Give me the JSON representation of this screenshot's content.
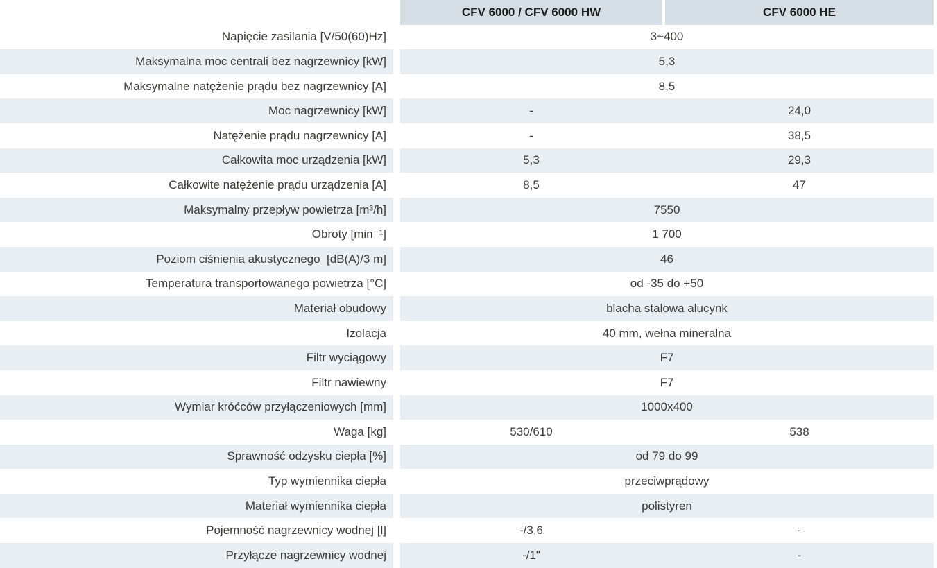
{
  "table": {
    "header": {
      "corner": "",
      "col1": "CFV 6000 / CFV 6000 HW",
      "col2": "CFV 6000 HE"
    },
    "rows": [
      {
        "label": "Napięcie zasilania [V/50(60)Hz]",
        "span": "3~400"
      },
      {
        "label": "Maksymalna moc centrali bez nagrzewnicy [kW]",
        "span": "5,3"
      },
      {
        "label": "Maksymalne natężenie prądu bez nagrzewnicy [A]",
        "span": "8,5"
      },
      {
        "label": "Moc nagrzewnicy [kW]",
        "col1": "-",
        "col2": "24,0"
      },
      {
        "label": "Natężenie prądu nagrzewnicy [A]",
        "col1": "-",
        "col2": "38,5"
      },
      {
        "label": "Całkowita moc urządzenia [kW]",
        "col1": "5,3",
        "col2": "29,3"
      },
      {
        "label": "Całkowite natężenie prądu urządzenia [A]",
        "col1": "8,5",
        "col2": "47"
      },
      {
        "label": "Maksymalny przepływ powietrza [m³/h]",
        "span": "7550"
      },
      {
        "label": "Obroty [min⁻¹]",
        "span": "1 700"
      },
      {
        "label": "Poziom ciśnienia akustycznego  [dB(A)/3 m]",
        "span": "46"
      },
      {
        "label": "Temperatura transportowanego powietrza [°C]",
        "span": "od -35 do +50"
      },
      {
        "label": "Materiał obudowy",
        "span": "blacha stalowa alucynk"
      },
      {
        "label": "Izolacja",
        "span": "40 mm, wełna mineralna"
      },
      {
        "label": "Filtr wyciągowy",
        "span": "F7"
      },
      {
        "label": "Filtr nawiewny",
        "span": "F7"
      },
      {
        "label": "Wymiar króćców przyłączeniowych [mm]",
        "span": "1000x400"
      },
      {
        "label": "Waga [kg]",
        "col1": "530/610",
        "col2": "538"
      },
      {
        "label": "Sprawność odzysku ciepła [%]",
        "span": "od 79 do 99"
      },
      {
        "label": "Typ wymiennika ciepła",
        "span": "przeciwprądowy"
      },
      {
        "label": "Materiał wymiennika ciepła",
        "span": "polistyren"
      },
      {
        "label": "Pojemność nagrzewnicy wodnej [l]",
        "col1": "-/3,6",
        "col2": "-"
      },
      {
        "label": "Przyłącze nagrzewnicy wodnej",
        "col1": "-/1\"",
        "col2": "-"
      }
    ],
    "colors": {
      "header_bg": "#d5dee4",
      "zebra_light_bg": "#e9eef2",
      "zebra_white_bg": "#ffffff",
      "header_text": "#1c1c1a",
      "body_text": "#3b3b3a"
    }
  }
}
